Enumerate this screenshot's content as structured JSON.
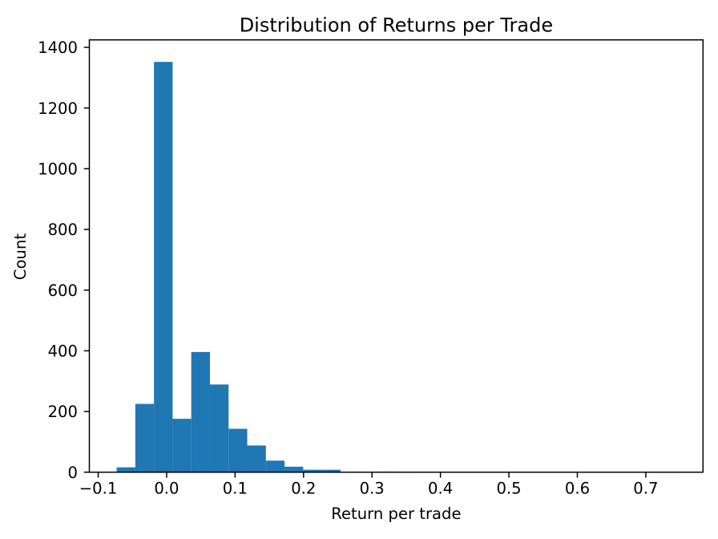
{
  "chart_data": {
    "type": "bar",
    "subtype": "histogram",
    "title": "Distribution of Returns per Trade",
    "xlabel": "Return per trade",
    "ylabel": "Count",
    "bar_color": "#1f77b4",
    "axis_color": "#000000",
    "background_color": "#ffffff",
    "grid": false,
    "legend": null,
    "bin_start": -0.073,
    "bin_width": 0.02725,
    "counts": [
      16,
      225,
      1352,
      176,
      396,
      289,
      143,
      88,
      38,
      18,
      8,
      8,
      0,
      0,
      2,
      1,
      0,
      0,
      0,
      0,
      0,
      0,
      0,
      0,
      0,
      0,
      0,
      0,
      0,
      1
    ],
    "x_tick_values": [
      -0.1,
      0.0,
      0.1,
      0.2,
      0.3,
      0.4,
      0.5,
      0.6,
      0.7
    ],
    "x_tick_labels": [
      "−0.1",
      "0.0",
      "0.1",
      "0.2",
      "0.3",
      "0.4",
      "0.5",
      "0.6",
      "0.7"
    ],
    "y_tick_values": [
      0,
      200,
      400,
      600,
      800,
      1000,
      1200,
      1400
    ],
    "y_tick_labels": [
      "0",
      "200",
      "400",
      "600",
      "800",
      "1000",
      "1200",
      "1400"
    ],
    "xlim": [
      -0.1129,
      0.7836
    ],
    "ylim": [
      0,
      1424.6
    ]
  }
}
